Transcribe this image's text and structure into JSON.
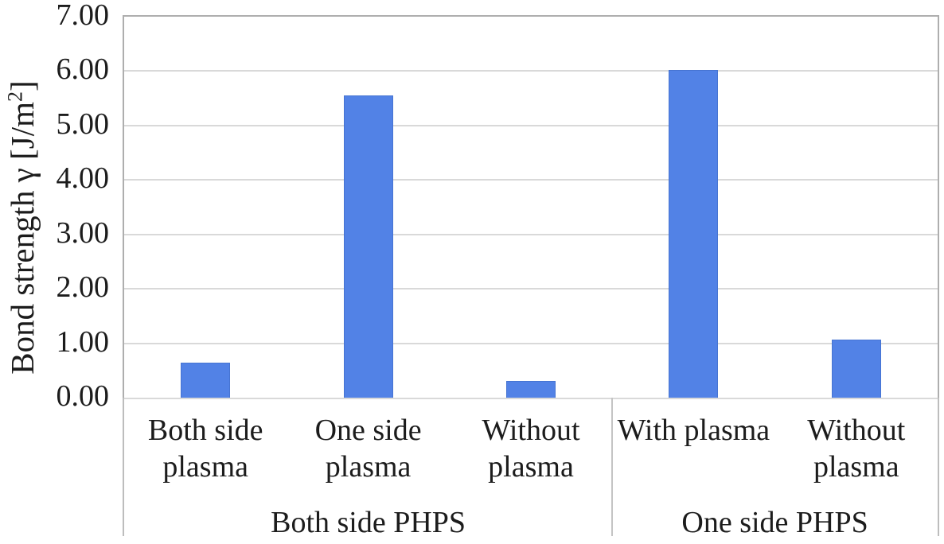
{
  "chart_data": {
    "type": "bar",
    "title": "",
    "ylabel": {
      "prefix": "Bond strength γ [J/m",
      "sup": "2",
      "suffix": "]"
    },
    "ylim": [
      0,
      7
    ],
    "ytick_step": 1,
    "ytick_labels": [
      "0.00",
      "1.00",
      "2.00",
      "3.00",
      "4.00",
      "5.00",
      "6.00",
      "7.00"
    ],
    "grid": true,
    "legend": false,
    "bar_color": "#5282e6",
    "groups": [
      {
        "label": "Both side PHPS",
        "categories": [
          {
            "lines": [
              "Both side",
              "plasma"
            ],
            "value": 0.65
          },
          {
            "lines": [
              "One side",
              "plasma"
            ],
            "value": 5.55
          },
          {
            "lines": [
              "Without",
              "plasma"
            ],
            "value": 0.3
          }
        ]
      },
      {
        "label": "One side PHPS",
        "categories": [
          {
            "lines": [
              "With plasma"
            ],
            "value": 6.02
          },
          {
            "lines": [
              "Without",
              "plasma"
            ],
            "value": 1.07
          }
        ]
      }
    ]
  }
}
